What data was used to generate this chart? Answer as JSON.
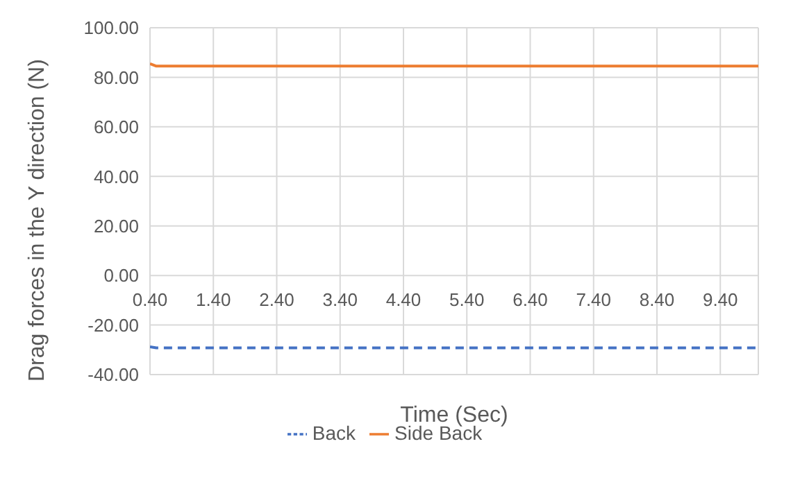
{
  "chart_data": {
    "type": "line",
    "xlabel": "Time (Sec)",
    "ylabel": "Drag forces in the Y direction (N)",
    "xlim": [
      0.4,
      10
    ],
    "xticks": [
      {
        "value": 0.4,
        "label": "0.40"
      },
      {
        "value": 1.4,
        "label": "1.40"
      },
      {
        "value": 2.4,
        "label": "2.40"
      },
      {
        "value": 3.4,
        "label": "3.40"
      },
      {
        "value": 4.4,
        "label": "4.40"
      },
      {
        "value": 5.4,
        "label": "5.40"
      },
      {
        "value": 6.4,
        "label": "6.40"
      },
      {
        "value": 7.4,
        "label": "7.40"
      },
      {
        "value": 8.4,
        "label": "8.40"
      },
      {
        "value": 9.4,
        "label": "9.40"
      }
    ],
    "ylim": [
      -40,
      100
    ],
    "yticks": [
      {
        "value": -40,
        "label": "-40.00"
      },
      {
        "value": -20,
        "label": "-20.00"
      },
      {
        "value": 0,
        "label": "0.00"
      },
      {
        "value": 20,
        "label": "20.00"
      },
      {
        "value": 40,
        "label": "40.00"
      },
      {
        "value": 60,
        "label": "60.00"
      },
      {
        "value": 80,
        "label": "80.00"
      },
      {
        "value": 100,
        "label": "100.00"
      }
    ],
    "grid": true,
    "legend": "bottom",
    "series": [
      {
        "name": "Back",
        "color": "#4472c4",
        "line_style": "dashed",
        "x": [
          0.4,
          0.5,
          10
        ],
        "values": [
          -28.8,
          -29.2,
          -29.2
        ]
      },
      {
        "name": "Side Back",
        "color": "#ed7d31",
        "line_style": "solid",
        "x": [
          0.4,
          0.5,
          10
        ],
        "values": [
          85.5,
          84.5,
          84.5
        ]
      }
    ]
  }
}
